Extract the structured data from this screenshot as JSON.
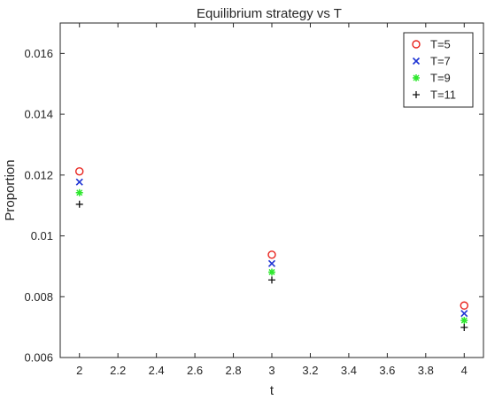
{
  "chart_data": {
    "type": "scatter",
    "title": "Equilibrium strategy  vs T",
    "xlabel": "t",
    "ylabel": "Proportion",
    "xlim": [
      1.9,
      4.1
    ],
    "ylim": [
      0.006,
      0.017
    ],
    "xticks": [
      2,
      2.2,
      2.4,
      2.6,
      2.8,
      3,
      3.2,
      3.4,
      3.6,
      3.8,
      4
    ],
    "xtick_labels": [
      "2",
      "2.2",
      "2.4",
      "2.6",
      "2.8",
      "3",
      "3.2",
      "3.4",
      "3.6",
      "3.8",
      "4"
    ],
    "yticks": [
      0.006,
      0.008,
      0.01,
      0.012,
      0.014,
      0.016
    ],
    "ytick_labels": [
      "0.006",
      "0.008",
      "0.01",
      "0.012",
      "0.014",
      "0.016"
    ],
    "grid": false,
    "legend_position": "top-right",
    "x": [
      2,
      3,
      4
    ],
    "series": [
      {
        "name": "T=5",
        "marker": "circle",
        "color": "#e8221c",
        "values": [
          0.01212,
          0.00938,
          0.00771
        ]
      },
      {
        "name": "T=7",
        "marker": "x",
        "color": "#1f35d4",
        "values": [
          0.01177,
          0.00909,
          0.00745
        ]
      },
      {
        "name": "T=9",
        "marker": "star",
        "color": "#2ee82e",
        "values": [
          0.01142,
          0.00881,
          0.00722
        ]
      },
      {
        "name": "T=11",
        "marker": "plus",
        "color": "#111111",
        "values": [
          0.01104,
          0.00855,
          0.00699
        ]
      }
    ]
  }
}
